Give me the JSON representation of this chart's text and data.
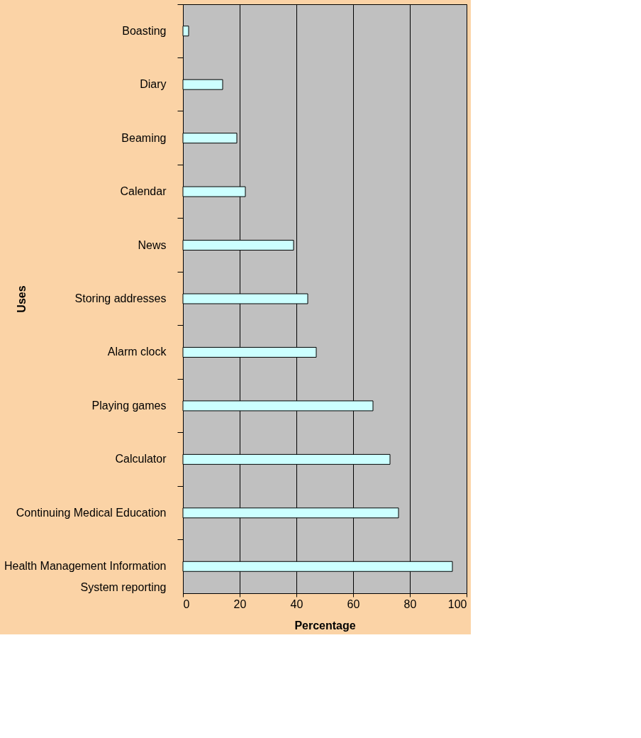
{
  "chart_data": {
    "type": "bar",
    "orientation": "horizontal",
    "xlabel": "Percentage",
    "ylabel": "Uses",
    "categories": [
      "Boasting",
      "Diary",
      "Beaming",
      "Calendar",
      "News",
      "Storing addresses",
      "Alarm clock",
      "Playing games",
      "Calculator",
      "Continuing Medical Education",
      "Health Management Information\nSystem reporting"
    ],
    "values": [
      2,
      14,
      19,
      22,
      39,
      44,
      47,
      67,
      73,
      76,
      95
    ],
    "color": "#ccffff",
    "xlim": [
      0,
      100
    ],
    "xticks": [
      0,
      20,
      40,
      60,
      80,
      100
    ],
    "grid": "x"
  }
}
